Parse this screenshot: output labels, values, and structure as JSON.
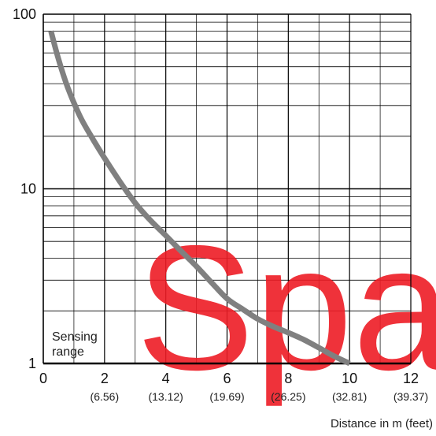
{
  "chart_data": {
    "type": "line",
    "title": "",
    "xlabel": "Distance in m (feet)",
    "ylabel": "",
    "xlim": [
      0,
      12
    ],
    "ylim": [
      1,
      100
    ],
    "y_scale": "log",
    "grid": true,
    "x_ticks": [
      {
        "value": 0,
        "label": "0",
        "sub": ""
      },
      {
        "value": 2,
        "label": "2",
        "sub": "(6.56)"
      },
      {
        "value": 4,
        "label": "4",
        "sub": "(13.12)"
      },
      {
        "value": 6,
        "label": "6",
        "sub": "(19.69)"
      },
      {
        "value": 8,
        "label": "8",
        "sub": "(26.25)"
      },
      {
        "value": 10,
        "label": "10",
        "sub": "(32.81)"
      },
      {
        "value": 12,
        "label": "12",
        "sub": "(39.37)"
      }
    ],
    "y_ticks": [
      {
        "value": 1,
        "label": "1"
      },
      {
        "value": 10,
        "label": "10"
      },
      {
        "value": 100,
        "label": "100"
      }
    ],
    "series": [
      {
        "color": "#808080",
        "x": [
          0.25,
          0.5,
          0.8,
          1.2,
          1.6,
          2.0,
          2.5,
          3.0,
          3.5,
          4.0,
          4.5,
          5.0,
          5.5,
          6.0,
          6.5,
          7.0,
          7.5,
          8.0,
          8.5,
          9.0,
          9.5,
          10.0
        ],
        "y": [
          80,
          55,
          38,
          26,
          19.5,
          15,
          11,
          8.3,
          6.6,
          5.4,
          4.4,
          3.6,
          2.9,
          2.35,
          2.05,
          1.8,
          1.63,
          1.5,
          1.37,
          1.23,
          1.1,
          1.0
        ]
      }
    ],
    "annotations": {
      "range_label": [
        "Sensing",
        "range"
      ]
    }
  },
  "watermark": {
    "text": "Spa",
    "color": "#ee1c25"
  },
  "colors": {
    "grid": "#000000",
    "curve": "#808080",
    "watermark": "#ee1c25"
  }
}
